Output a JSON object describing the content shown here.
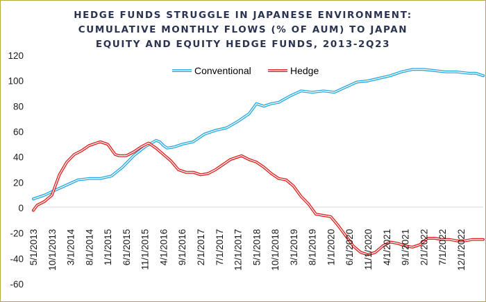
{
  "chart_data": {
    "type": "line",
    "title": [
      "HEDGE FUNDS STRUGGLE IN JAPANESE ENVIRONMENT:",
      "CUMULATIVE MONTHLY FLOWS (% OF AUM) TO JAPAN",
      "EQUITY AND EQUITY HEDGE FUNDS, 2013-2Q23"
    ],
    "xlabel": "",
    "ylabel": "",
    "ylim": [
      -60,
      120
    ],
    "yticks": [
      -60,
      -40,
      -20,
      0,
      20,
      40,
      60,
      80,
      100,
      120
    ],
    "x_start": "5/1/2013",
    "x_end": "6/1/2023",
    "x_tick_labels": [
      "5/1/2013",
      "10/1/2013",
      "3/1/2014",
      "8/1/2014",
      "1/1/2015",
      "6/1/2015",
      "11/1/2015",
      "4/1/2016",
      "9/1/2016",
      "2/1/2017",
      "7/1/2017",
      "12/1/2017",
      "5/1/2018",
      "10/1/2018",
      "3/1/2019",
      "8/1/2019",
      "1/1/2020",
      "6/1/2020",
      "11/1/2020",
      "4/1/2021",
      "9/1/2021",
      "2/1/2022",
      "7/1/2022",
      "12/1/2022"
    ],
    "grid": false,
    "legend_position": "top-center",
    "series": [
      {
        "name": "Conventional",
        "color": "#29a9e0",
        "points": [
          [
            "5/1/2013",
            7
          ],
          [
            "8/1/2013",
            10
          ],
          [
            "11/1/2013",
            14
          ],
          [
            "2/1/2014",
            18
          ],
          [
            "5/1/2014",
            22
          ],
          [
            "8/1/2014",
            23
          ],
          [
            "11/1/2014",
            23
          ],
          [
            "2/1/2015",
            25
          ],
          [
            "5/1/2015",
            32
          ],
          [
            "8/1/2015",
            41
          ],
          [
            "11/1/2015",
            48
          ],
          [
            "2/1/2016",
            53
          ],
          [
            "3/1/2016",
            52
          ],
          [
            "4/1/2016",
            49
          ],
          [
            "5/1/2016",
            47
          ],
          [
            "7/1/2016",
            48
          ],
          [
            "9/1/2016",
            50
          ],
          [
            "12/1/2016",
            52
          ],
          [
            "3/1/2017",
            58
          ],
          [
            "6/1/2017",
            61
          ],
          [
            "9/1/2017",
            63
          ],
          [
            "12/1/2017",
            68
          ],
          [
            "3/1/2018",
            74
          ],
          [
            "5/1/2018",
            82
          ],
          [
            "7/1/2018",
            80
          ],
          [
            "9/1/2018",
            82
          ],
          [
            "11/1/2018",
            83
          ],
          [
            "2/1/2019",
            88
          ],
          [
            "5/1/2019",
            92
          ],
          [
            "8/1/2019",
            91
          ],
          [
            "11/1/2019",
            92
          ],
          [
            "2/1/2020",
            91
          ],
          [
            "5/1/2020",
            95
          ],
          [
            "8/1/2020",
            99
          ],
          [
            "11/1/2020",
            100
          ],
          [
            "2/1/2021",
            102
          ],
          [
            "5/1/2021",
            104
          ],
          [
            "8/1/2021",
            107
          ],
          [
            "11/1/2021",
            109
          ],
          [
            "2/1/2022",
            109
          ],
          [
            "5/1/2022",
            108
          ],
          [
            "8/1/2022",
            107
          ],
          [
            "11/1/2022",
            107
          ],
          [
            "2/1/2023",
            106
          ],
          [
            "4/1/2023",
            106
          ],
          [
            "6/1/2023",
            104
          ]
        ]
      },
      {
        "name": "Hedge",
        "color": "#e02020",
        "points": [
          [
            "5/1/2013",
            -2
          ],
          [
            "6/1/2013",
            2
          ],
          [
            "8/1/2013",
            5
          ],
          [
            "10/1/2013",
            10
          ],
          [
            "11/1/2013",
            18
          ],
          [
            "12/1/2013",
            26
          ],
          [
            "2/1/2014",
            36
          ],
          [
            "4/1/2014",
            42
          ],
          [
            "6/1/2014",
            45
          ],
          [
            "8/1/2014",
            49
          ],
          [
            "10/1/2014",
            51
          ],
          [
            "11/1/2014",
            52
          ],
          [
            "1/1/2015",
            50
          ],
          [
            "2/1/2015",
            46
          ],
          [
            "3/1/2015",
            42
          ],
          [
            "4/1/2015",
            41
          ],
          [
            "6/1/2015",
            41
          ],
          [
            "8/1/2015",
            44
          ],
          [
            "10/1/2015",
            48
          ],
          [
            "12/1/2015",
            51
          ],
          [
            "2/1/2016",
            47
          ],
          [
            "4/1/2016",
            42
          ],
          [
            "6/1/2016",
            37
          ],
          [
            "8/1/2016",
            30
          ],
          [
            "10/1/2016",
            28
          ],
          [
            "12/1/2016",
            28
          ],
          [
            "2/1/2017",
            26
          ],
          [
            "4/1/2017",
            27
          ],
          [
            "6/1/2017",
            30
          ],
          [
            "8/1/2017",
            34
          ],
          [
            "10/1/2017",
            38
          ],
          [
            "1/1/2018",
            41
          ],
          [
            "3/1/2018",
            38
          ],
          [
            "5/1/2018",
            36
          ],
          [
            "7/1/2018",
            32
          ],
          [
            "9/1/2018",
            27
          ],
          [
            "11/1/2018",
            23
          ],
          [
            "1/1/2019",
            22
          ],
          [
            "3/1/2019",
            17
          ],
          [
            "5/1/2019",
            9
          ],
          [
            "7/1/2019",
            3
          ],
          [
            "9/1/2019",
            -5
          ],
          [
            "11/1/2019",
            -6
          ],
          [
            "1/1/2020",
            -7
          ],
          [
            "3/1/2020",
            -14
          ],
          [
            "5/1/2020",
            -22
          ],
          [
            "7/1/2020",
            -30
          ],
          [
            "9/1/2020",
            -35
          ],
          [
            "11/1/2020",
            -37
          ],
          [
            "1/1/2021",
            -35
          ],
          [
            "3/1/2021",
            -30
          ],
          [
            "5/1/2021",
            -27
          ],
          [
            "7/1/2021",
            -28
          ],
          [
            "9/1/2021",
            -30
          ],
          [
            "11/1/2021",
            -31
          ],
          [
            "1/1/2022",
            -29
          ],
          [
            "3/1/2022",
            -24
          ],
          [
            "5/1/2022",
            -24
          ],
          [
            "7/1/2022",
            -25
          ],
          [
            "9/1/2022",
            -25
          ],
          [
            "11/1/2022",
            -26
          ],
          [
            "1/1/2023",
            -26
          ],
          [
            "3/1/2023",
            -25
          ],
          [
            "6/1/2023",
            -25
          ]
        ]
      }
    ]
  }
}
